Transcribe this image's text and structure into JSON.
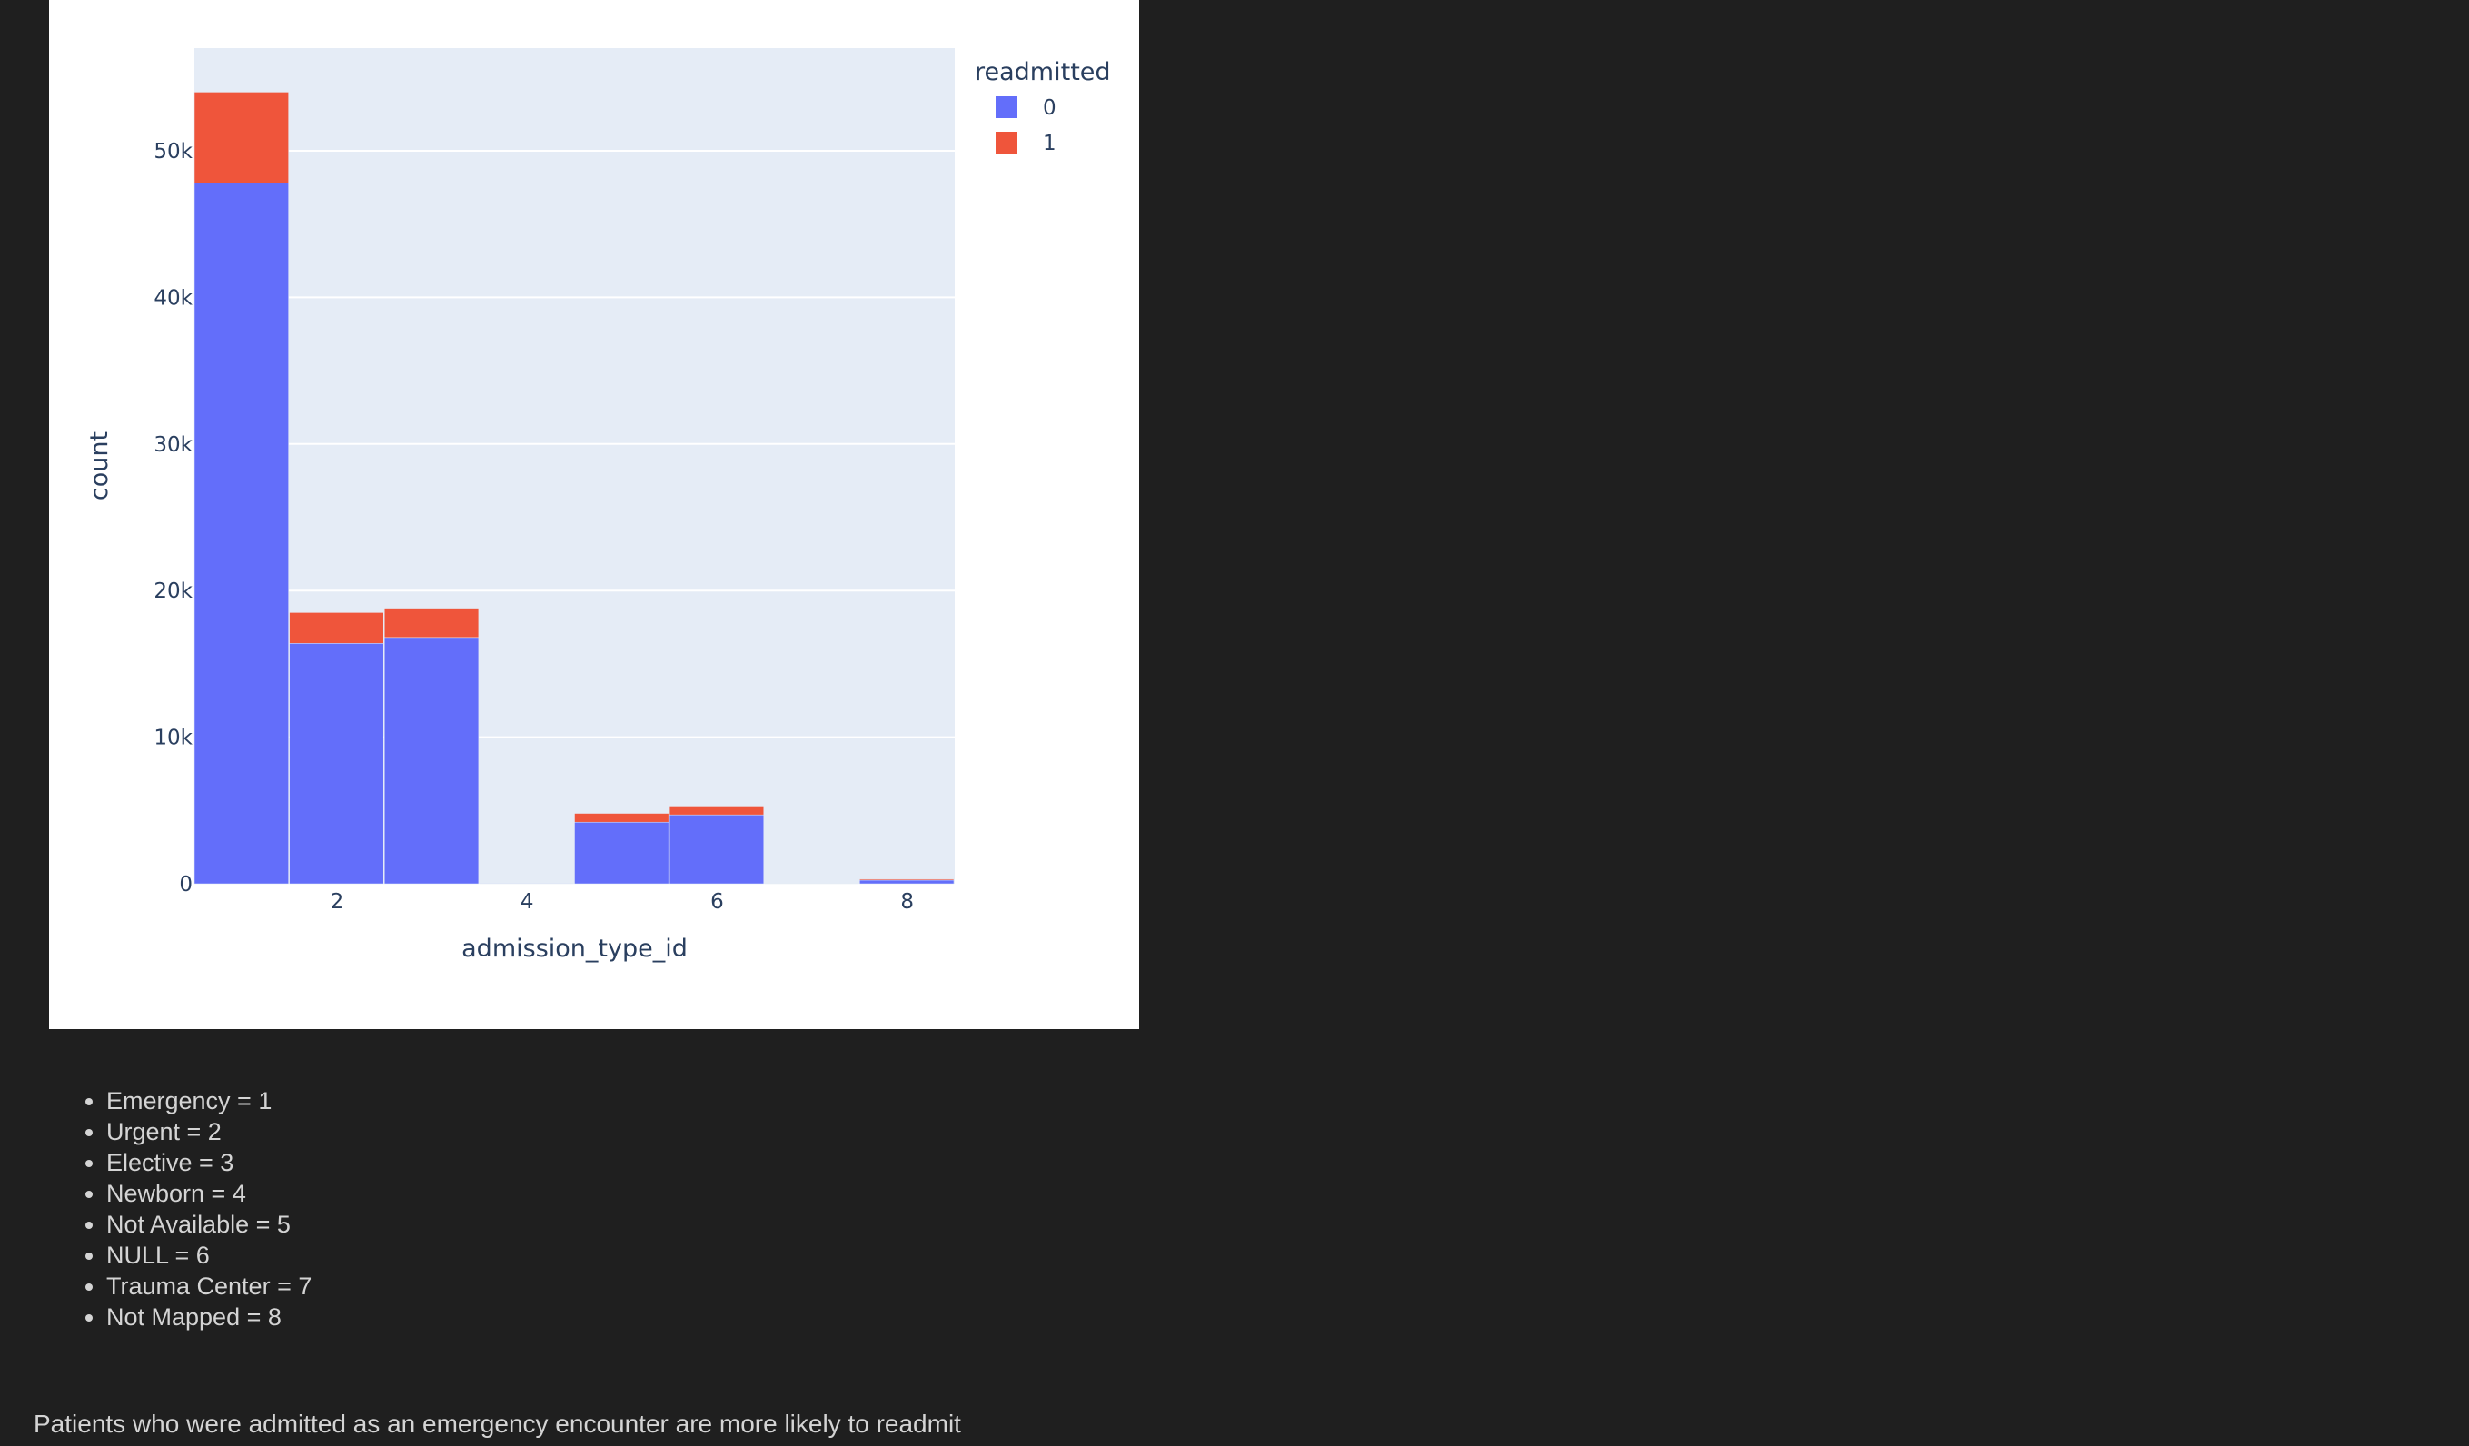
{
  "chart_data": {
    "type": "bar",
    "barmode": "stack",
    "xlabel": "admission_type_id",
    "ylabel": "count",
    "x_tick_labels": [
      "2",
      "4",
      "6",
      "8"
    ],
    "y_tick_labels": [
      "0",
      "10k",
      "20k",
      "30k",
      "40k",
      "50k"
    ],
    "xlim": [
      0.5,
      8.5
    ],
    "ylim": [
      0,
      57000
    ],
    "grid": true,
    "legend_title": "readmitted",
    "legend_position": "top-right",
    "bin_width": 1,
    "x": [
      1,
      2,
      3,
      4,
      5,
      6,
      7,
      8
    ],
    "series": [
      {
        "name": "0",
        "color": "#636efa",
        "values": [
          47800,
          16400,
          16800,
          10,
          4200,
          4700,
          18,
          250
        ]
      },
      {
        "name": "1",
        "color": "#ef553b",
        "values": [
          6200,
          2100,
          2000,
          0,
          600,
          600,
          3,
          70
        ]
      }
    ]
  },
  "notes": {
    "items": [
      "Emergency = 1",
      "Urgent = 2",
      "Elective = 3",
      "Newborn = 4",
      "Not Available = 5",
      "NULL = 6",
      "Trauma Center = 7",
      "Not Mapped = 8"
    ]
  },
  "conclusion": "Patients who were admitted as an emergency encounter are more likely to readmit"
}
